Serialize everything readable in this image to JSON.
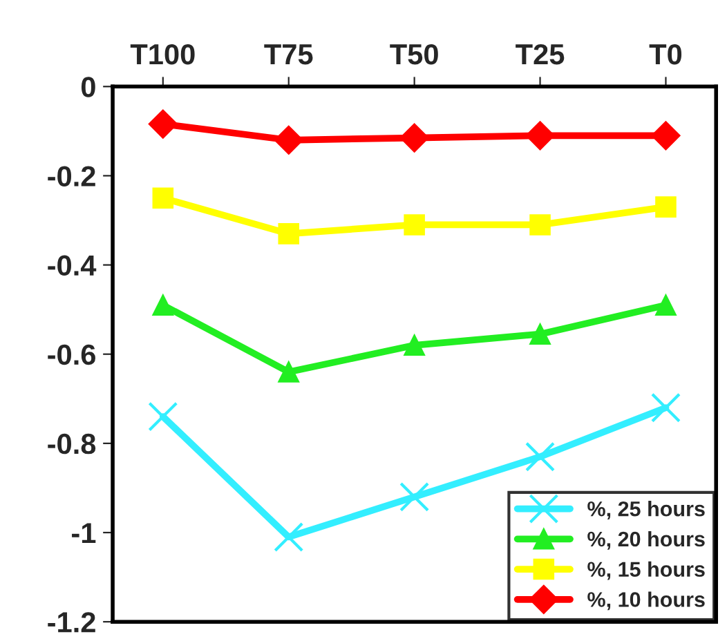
{
  "chart_data": {
    "type": "line",
    "categories": [
      "T100",
      "T75",
      "T50",
      "T25",
      "T0"
    ],
    "series": [
      {
        "name": "%, 25 hours",
        "color": "#33eeff",
        "marker": "cross",
        "values": [
          -0.74,
          -1.01,
          -0.92,
          -0.83,
          -0.72
        ]
      },
      {
        "name": "%, 20 hours",
        "color": "#22ee22",
        "marker": "triangle",
        "values": [
          -0.49,
          -0.64,
          -0.58,
          -0.555,
          -0.49
        ]
      },
      {
        "name": "%, 15 hours",
        "color": "#ffff00",
        "marker": "square",
        "values": [
          -0.25,
          -0.33,
          -0.31,
          -0.31,
          -0.27
        ]
      },
      {
        "name": "%, 10 hours",
        "color": "#ff0000",
        "marker": "diamond",
        "values": [
          -0.084,
          -0.12,
          -0.115,
          -0.11,
          -0.11
        ]
      }
    ],
    "ylim": [
      -1.2,
      0
    ],
    "yticks": [
      -1.2,
      -1,
      -0.8,
      -0.6,
      -0.4,
      -0.2,
      0
    ],
    "grid": false,
    "legend": "bottom right",
    "line_style": "solid"
  }
}
